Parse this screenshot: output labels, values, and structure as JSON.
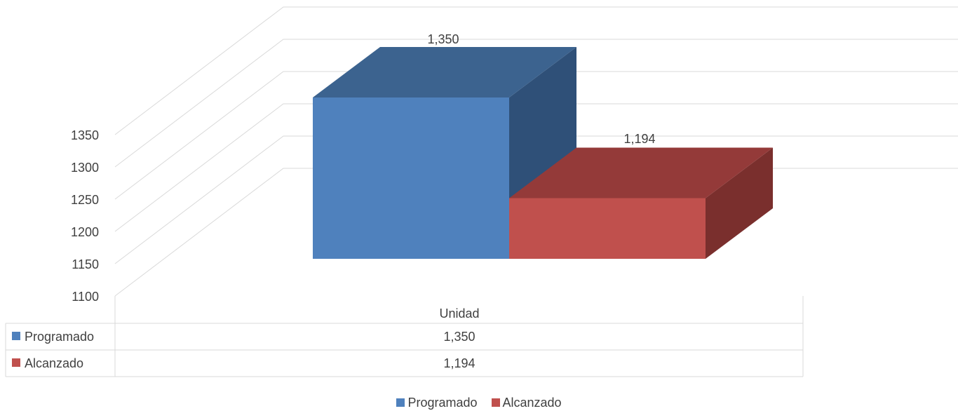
{
  "chart_data": {
    "type": "bar",
    "categories": [
      "Unidad"
    ],
    "series": [
      {
        "name": "Programado",
        "values": [
          1350
        ],
        "label": "1,350",
        "color": "#4F81BD"
      },
      {
        "name": "Alcanzado",
        "values": [
          1194
        ],
        "label": "1,194",
        "color": "#C0504D"
      }
    ],
    "yticks": [
      "1100",
      "1150",
      "1200",
      "1250",
      "1300",
      "1350"
    ],
    "ylim": [
      1100,
      1350
    ],
    "grid": true,
    "legend_position": "bottom",
    "data_table": true,
    "style": "3d-column"
  }
}
